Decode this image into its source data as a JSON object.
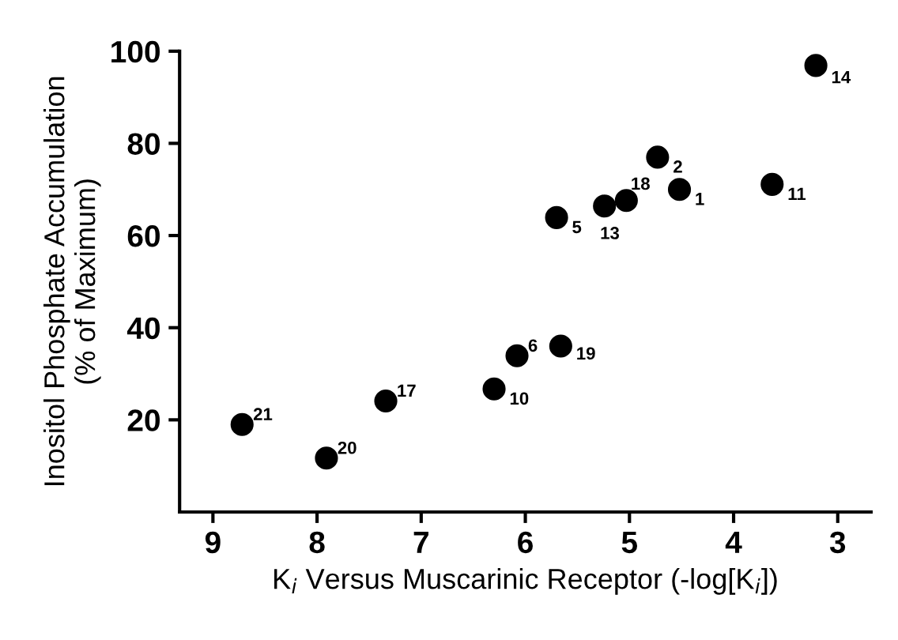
{
  "chart_data": {
    "type": "scatter",
    "xlabel": "K$_{i}$ Versus Muscarinic Receptor (-log[K$_{i}$])",
    "ylabel": "Inositol Phosphate Accumulation\n(% of Maximum)",
    "x": [
      8.72,
      7.91,
      7.34,
      6.3,
      6.08,
      5.66,
      5.7,
      5.24,
      5.03,
      4.73,
      4.52,
      3.63,
      3.21
    ],
    "series": [
      {
        "color": "#000000",
        "values": [
          19,
          11.7,
          24.1,
          26.7,
          33.9,
          36,
          63.9,
          66.4,
          67.6,
          77,
          70,
          71.1,
          96.9
        ]
      }
    ],
    "annotations": [
      {
        "text": "21",
        "x": 8.72,
        "y": 19
      },
      {
        "text": "20",
        "x": 7.91,
        "y": 11.7
      },
      {
        "text": "17",
        "x": 7.34,
        "y": 24.1
      },
      {
        "text": "10",
        "x": 6.3,
        "y": 26.7
      },
      {
        "text": "6",
        "x": 6.08,
        "y": 33.9
      },
      {
        "text": "19",
        "x": 5.66,
        "y": 36
      },
      {
        "text": "5",
        "x": 5.7,
        "y": 63.9
      },
      {
        "text": "13",
        "x": 5.24,
        "y": 66.4
      },
      {
        "text": "18",
        "x": 5.03,
        "y": 67.6
      },
      {
        "text": "2",
        "x": 4.73,
        "y": 77
      },
      {
        "text": "1",
        "x": 4.52,
        "y": 70
      },
      {
        "text": "11",
        "x": 3.63,
        "y": 71.1
      },
      {
        "text": "14",
        "x": 3.21,
        "y": 96.9
      }
    ],
    "xlim": [
      9.32,
      2.68
    ],
    "xticks": [
      9,
      8,
      7,
      6,
      5,
      4,
      3
    ],
    "ylim": [
      0,
      100
    ],
    "yticks": [
      20,
      40,
      60,
      80,
      100
    ],
    "marker": "circle",
    "grid": false,
    "legend": false
  }
}
